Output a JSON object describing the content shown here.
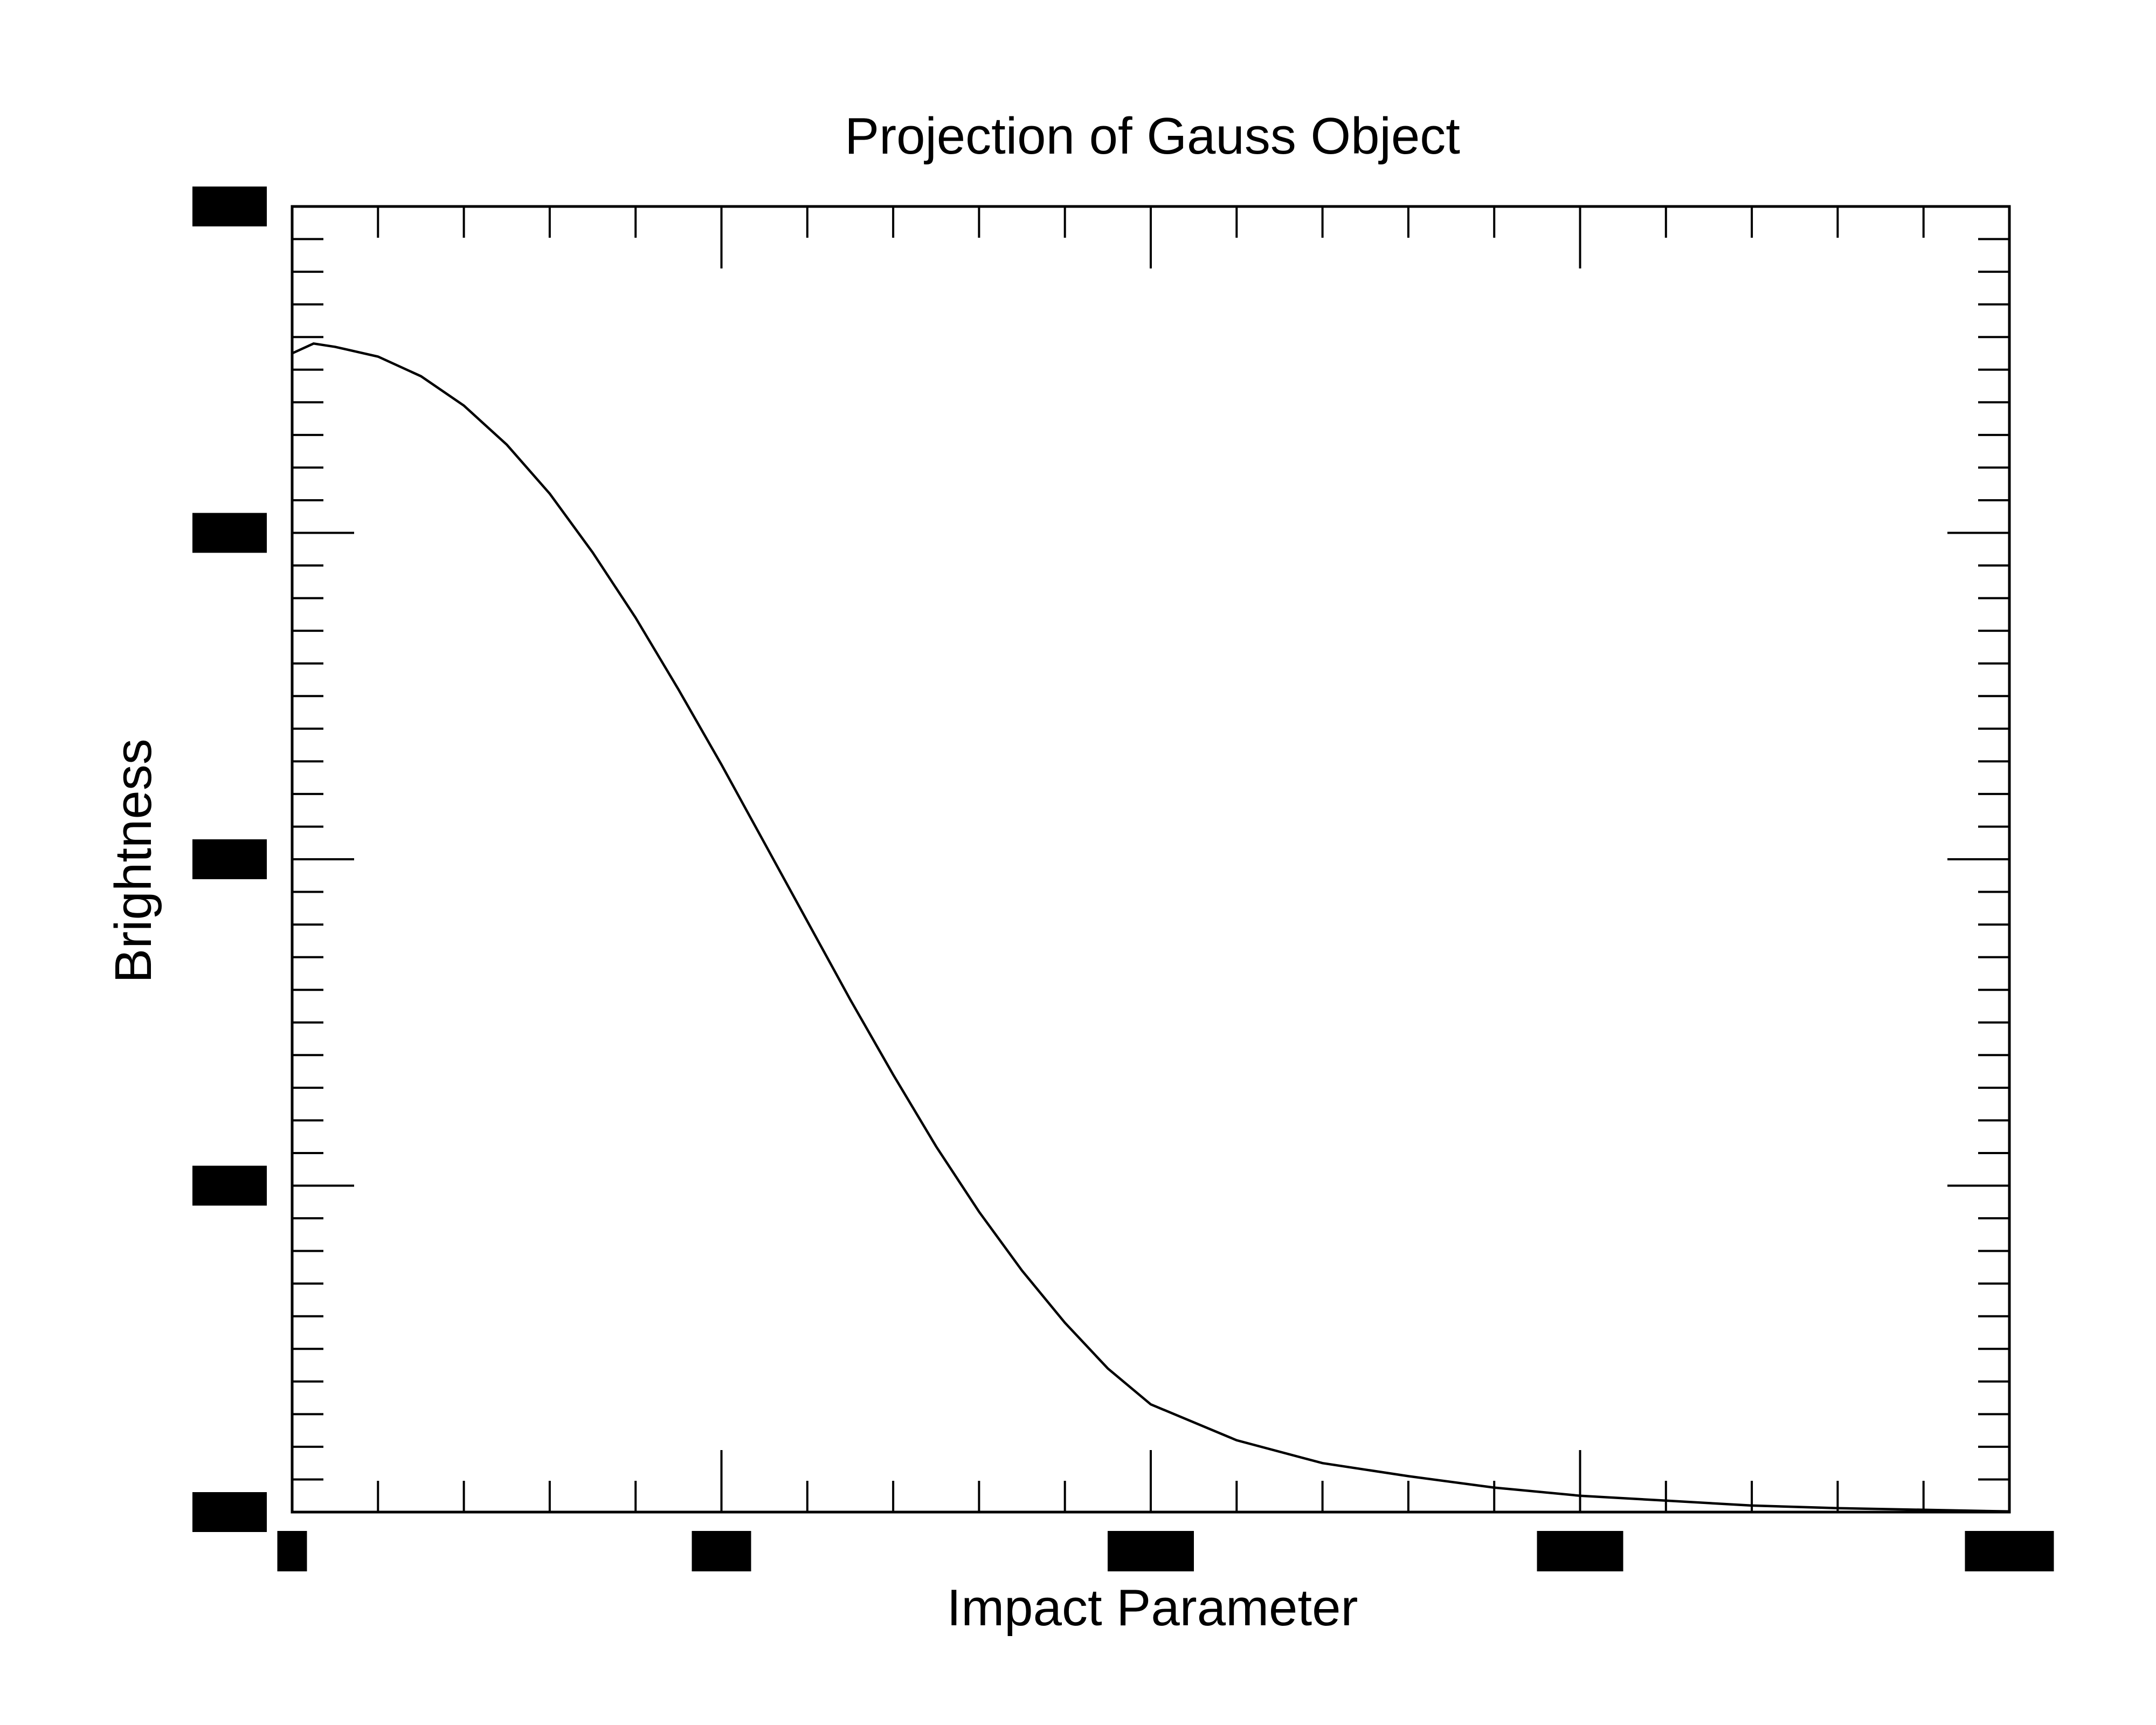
{
  "chart_data": {
    "type": "line",
    "title": "Projection of Gauss Object",
    "xlabel": "Impact Parameter",
    "ylabel": "Brightness",
    "xlim": [
      0,
      4
    ],
    "ylim": [
      0,
      4
    ],
    "x_ticks": [
      0,
      1,
      2,
      3,
      4
    ],
    "y_ticks": [
      0,
      1,
      2,
      3,
      4
    ],
    "x_minor_per_major": 5,
    "y_minor_per_major": 10,
    "x_tick_labels_redacted": true,
    "y_tick_labels_redacted": true,
    "grid": false,
    "series": [
      {
        "x": [
          0,
          0.05,
          0.1,
          0.2,
          0.3,
          0.4,
          0.5,
          0.6,
          0.7,
          0.8,
          0.9,
          1.0,
          1.1,
          1.2,
          1.3,
          1.4,
          1.5,
          1.6,
          1.7,
          1.8,
          1.9,
          2.0,
          2.2,
          2.4,
          2.6,
          2.8,
          3.0,
          3.2,
          3.4,
          3.6,
          3.8,
          4.0
        ],
        "y": [
          3.55,
          3.58,
          3.57,
          3.54,
          3.48,
          3.39,
          3.27,
          3.12,
          2.94,
          2.74,
          2.52,
          2.29,
          2.05,
          1.81,
          1.57,
          1.34,
          1.12,
          0.92,
          0.74,
          0.58,
          0.44,
          0.33,
          0.22,
          0.15,
          0.11,
          0.075,
          0.05,
          0.035,
          0.02,
          0.012,
          0.007,
          0.002
        ]
      }
    ]
  }
}
